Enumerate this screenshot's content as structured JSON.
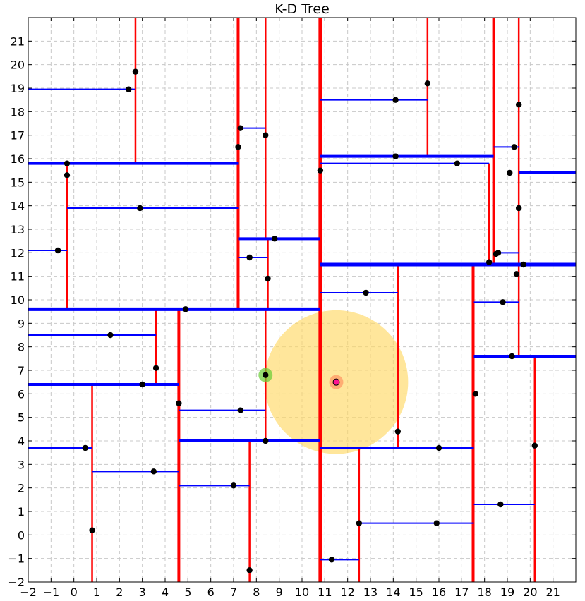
{
  "chart_data": {
    "type": "scatter",
    "title": "K-D Tree",
    "xlabel": "",
    "ylabel": "",
    "xlim": [
      -2,
      22
    ],
    "ylim": [
      -2,
      22
    ],
    "x_ticks": [
      -2,
      -1,
      0,
      1,
      2,
      3,
      4,
      5,
      6,
      7,
      8,
      9,
      10,
      11,
      12,
      13,
      14,
      15,
      16,
      17,
      18,
      19,
      20,
      21
    ],
    "y_ticks": [
      -2,
      -1,
      0,
      1,
      2,
      3,
      4,
      5,
      6,
      7,
      8,
      9,
      10,
      11,
      12,
      13,
      14,
      15,
      16,
      17,
      18,
      19,
      20,
      21
    ],
    "grid": true,
    "colors": {
      "points": "#000000",
      "vertical_split": "#ff0000",
      "horizontal_split": "#0000ff",
      "search_radius": "#ffd966",
      "query": "#ff1493",
      "nearest": "#66cc33"
    },
    "points": [
      [
        2.7,
        19.7
      ],
      [
        2.4,
        18.95
      ],
      [
        -0.3,
        15.8
      ],
      [
        -0.3,
        15.3
      ],
      [
        2.9,
        13.9
      ],
      [
        -0.7,
        12.1
      ],
      [
        1.6,
        8.5
      ],
      [
        3.6,
        7.1
      ],
      [
        3.0,
        6.4
      ],
      [
        0.5,
        3.7
      ],
      [
        3.5,
        2.7
      ],
      [
        0.8,
        0.2
      ],
      [
        4.9,
        9.6
      ],
      [
        4.6,
        5.6
      ],
      [
        7.3,
        5.3
      ],
      [
        7.0,
        2.1
      ],
      [
        7.7,
        -1.5
      ],
      [
        8.4,
        4.0
      ],
      [
        7.2,
        16.5
      ],
      [
        7.3,
        17.3
      ],
      [
        8.4,
        17.0
      ],
      [
        8.8,
        12.6
      ],
      [
        7.7,
        11.8
      ],
      [
        8.5,
        10.9
      ],
      [
        10.8,
        15.5
      ],
      [
        14.1,
        18.5
      ],
      [
        15.5,
        19.2
      ],
      [
        14.1,
        16.1
      ],
      [
        16.8,
        15.8
      ],
      [
        12.8,
        10.3
      ],
      [
        14.2,
        4.4
      ],
      [
        16.0,
        3.7
      ],
      [
        17.6,
        6.0
      ],
      [
        12.5,
        0.5
      ],
      [
        15.9,
        0.5
      ],
      [
        11.3,
        -1.05
      ],
      [
        18.2,
        11.6
      ],
      [
        18.5,
        11.95
      ],
      [
        18.6,
        12.0
      ],
      [
        19.4,
        11.1
      ],
      [
        19.7,
        11.5
      ],
      [
        19.5,
        13.9
      ],
      [
        19.5,
        18.3
      ],
      [
        19.3,
        16.5
      ],
      [
        19.1,
        15.4
      ],
      [
        18.8,
        9.9
      ],
      [
        19.2,
        7.6
      ],
      [
        20.2,
        3.8
      ],
      [
        18.7,
        1.3
      ]
    ],
    "vertical_splits": [
      {
        "x": 10.8,
        "y": [
          -2,
          22
        ],
        "w": 5
      },
      {
        "x": 7.2,
        "y": [
          9.6,
          22
        ],
        "w": 4
      },
      {
        "x": 4.6,
        "y": [
          -2,
          9.6
        ],
        "w": 4
      },
      {
        "x": 17.5,
        "y": [
          -2,
          11.5
        ],
        "w": 4
      },
      {
        "x": 18.4,
        "y": [
          11.5,
          22
        ],
        "w": 4
      },
      {
        "x": 2.7,
        "y": [
          15.8,
          22
        ],
        "w": 2.5
      },
      {
        "x": -0.3,
        "y": [
          9.6,
          15.8
        ],
        "w": 2.5
      },
      {
        "x": 3.6,
        "y": [
          6.4,
          9.6
        ],
        "w": 2.5
      },
      {
        "x": 0.8,
        "y": [
          -2,
          6.4
        ],
        "w": 2.5
      },
      {
        "x": 8.4,
        "y": [
          12.6,
          22
        ],
        "w": 2.5
      },
      {
        "x": 8.5,
        "y": [
          9.6,
          12.6
        ],
        "w": 2.5
      },
      {
        "x": 8.4,
        "y": [
          4.0,
          9.6
        ],
        "w": 2.5
      },
      {
        "x": 7.7,
        "y": [
          -2,
          4.0
        ],
        "w": 2.5
      },
      {
        "x": 15.5,
        "y": [
          16.1,
          22
        ],
        "w": 2.5
      },
      {
        "x": 18.2,
        "y": [
          11.5,
          15.8
        ],
        "w": 2.5
      },
      {
        "x": 14.2,
        "y": [
          3.7,
          11.5
        ],
        "w": 2.5
      },
      {
        "x": 12.5,
        "y": [
          -2,
          3.7
        ],
        "w": 2.5
      },
      {
        "x": 19.5,
        "y": [
          7.6,
          22
        ],
        "w": 2.5
      },
      {
        "x": 20.2,
        "y": [
          -2,
          7.6
        ],
        "w": 2.5
      }
    ],
    "horizontal_splits": [
      {
        "y": 9.6,
        "x": [
          -2,
          10.8
        ],
        "w": 5
      },
      {
        "y": 11.5,
        "x": [
          10.8,
          22
        ],
        "w": 5
      },
      {
        "y": 15.8,
        "x": [
          -2,
          7.2
        ],
        "w": 4
      },
      {
        "y": 12.6,
        "x": [
          7.2,
          10.8
        ],
        "w": 4
      },
      {
        "y": 6.4,
        "x": [
          -2,
          4.6
        ],
        "w": 4
      },
      {
        "y": 4.0,
        "x": [
          4.6,
          10.8
        ],
        "w": 4
      },
      {
        "y": 16.1,
        "x": [
          10.8,
          18.4
        ],
        "w": 4
      },
      {
        "y": 3.7,
        "x": [
          10.8,
          17.5
        ],
        "w": 4
      },
      {
        "y": 15.4,
        "x": [
          19.5,
          22
        ],
        "w": 4
      },
      {
        "y": 7.6,
        "x": [
          17.5,
          22
        ],
        "w": 4
      },
      {
        "y": 18.95,
        "x": [
          -2,
          2.7
        ],
        "w": 2
      },
      {
        "y": 13.9,
        "x": [
          -0.3,
          7.2
        ],
        "w": 2
      },
      {
        "y": 12.1,
        "x": [
          -2,
          -0.3
        ],
        "w": 2
      },
      {
        "y": 8.5,
        "x": [
          -2,
          3.6
        ],
        "w": 2
      },
      {
        "y": 3.7,
        "x": [
          -2,
          0.8
        ],
        "w": 2
      },
      {
        "y": 2.7,
        "x": [
          0.8,
          4.6
        ],
        "w": 2
      },
      {
        "y": 5.3,
        "x": [
          4.6,
          8.4
        ],
        "w": 2
      },
      {
        "y": 2.1,
        "x": [
          4.6,
          7.7
        ],
        "w": 2
      },
      {
        "y": 17.3,
        "x": [
          7.2,
          8.4
        ],
        "w": 2
      },
      {
        "y": 11.8,
        "x": [
          7.2,
          8.5
        ],
        "w": 2
      },
      {
        "y": 18.5,
        "x": [
          10.8,
          15.5
        ],
        "w": 2
      },
      {
        "y": 15.8,
        "x": [
          10.8,
          18.2
        ],
        "w": 2
      },
      {
        "y": 10.3,
        "x": [
          10.8,
          14.2
        ],
        "w": 2
      },
      {
        "y": 0.5,
        "x": [
          12.5,
          17.5
        ],
        "w": 2
      },
      {
        "y": -1.05,
        "x": [
          10.8,
          12.5
        ],
        "w": 2
      },
      {
        "y": 16.5,
        "x": [
          18.4,
          19.5
        ],
        "w": 2
      },
      {
        "y": 12.0,
        "x": [
          18.4,
          19.5
        ],
        "w": 2
      },
      {
        "y": 9.9,
        "x": [
          17.5,
          19.5
        ],
        "w": 2
      },
      {
        "y": 1.3,
        "x": [
          17.5,
          20.2
        ],
        "w": 2
      }
    ],
    "query_point": [
      11.5,
      6.5
    ],
    "nearest_point": [
      8.4,
      6.8
    ],
    "search_radius": 3.15
  }
}
